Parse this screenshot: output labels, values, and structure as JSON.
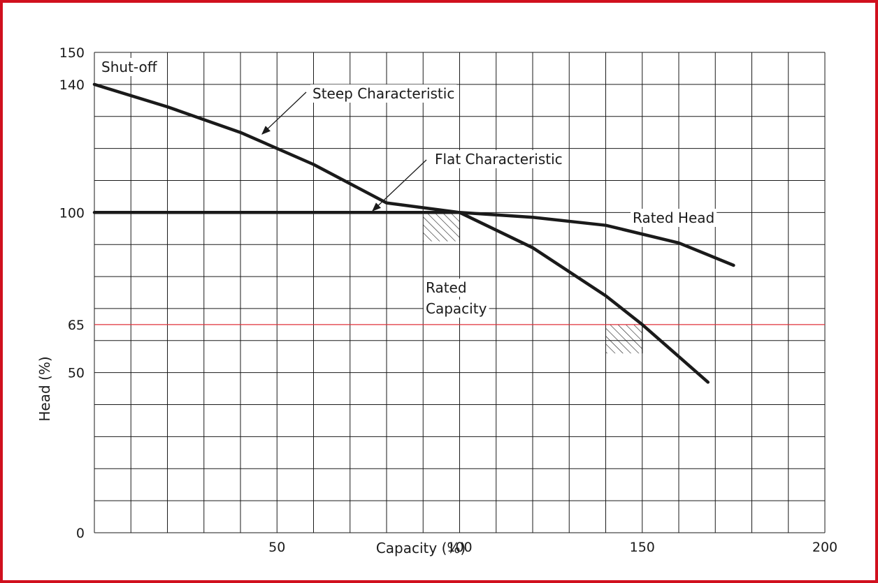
{
  "colors": {
    "frame": "#d0101e",
    "grid": "#1a1a1a",
    "curve": "#1a1a1a",
    "reference_line": "#e0303a"
  },
  "chart_data": {
    "type": "line",
    "title": "",
    "xlabel": "Capacity (%)",
    "ylabel": "Head (%)",
    "xlim": [
      0,
      200
    ],
    "ylim": [
      0,
      150
    ],
    "x_ticks": [
      50,
      100,
      150,
      200
    ],
    "y_ticks": [
      0,
      50,
      65,
      100,
      140,
      150
    ],
    "grid": true,
    "series": [
      {
        "name": "Steep Characteristic",
        "x": [
          0,
          20,
          40,
          60,
          80,
          100,
          120,
          140,
          150,
          160,
          168
        ],
        "y": [
          140,
          133,
          125,
          115,
          103,
          100,
          89,
          74,
          65,
          55,
          47
        ]
      },
      {
        "name": "Flat Characteristic",
        "x": [
          0,
          25,
          50,
          75,
          100,
          120,
          140,
          160,
          175
        ],
        "y": [
          100,
          100,
          100,
          100,
          100,
          98.5,
          96,
          90.5,
          83.5
        ]
      }
    ],
    "reference_lines": [
      {
        "axis": "y",
        "value": 65
      }
    ],
    "shaded_regions": [
      {
        "x": [
          90,
          100
        ],
        "y": [
          91,
          100
        ]
      },
      {
        "x": [
          140,
          150
        ],
        "y": [
          56,
          65
        ]
      }
    ],
    "annotations": [
      {
        "text": "Shut-off",
        "x": 0,
        "y": 140
      },
      {
        "text": "Steep Characteristic",
        "x": 40,
        "y": 125
      },
      {
        "text": "Flat Characteristic",
        "x": 75,
        "y": 100
      },
      {
        "text": "Rated Head",
        "x": 100,
        "y": 100
      },
      {
        "text": "Rated",
        "x": 100,
        "y": 91
      },
      {
        "text": "Capacity",
        "x": 100,
        "y": 91
      }
    ]
  }
}
